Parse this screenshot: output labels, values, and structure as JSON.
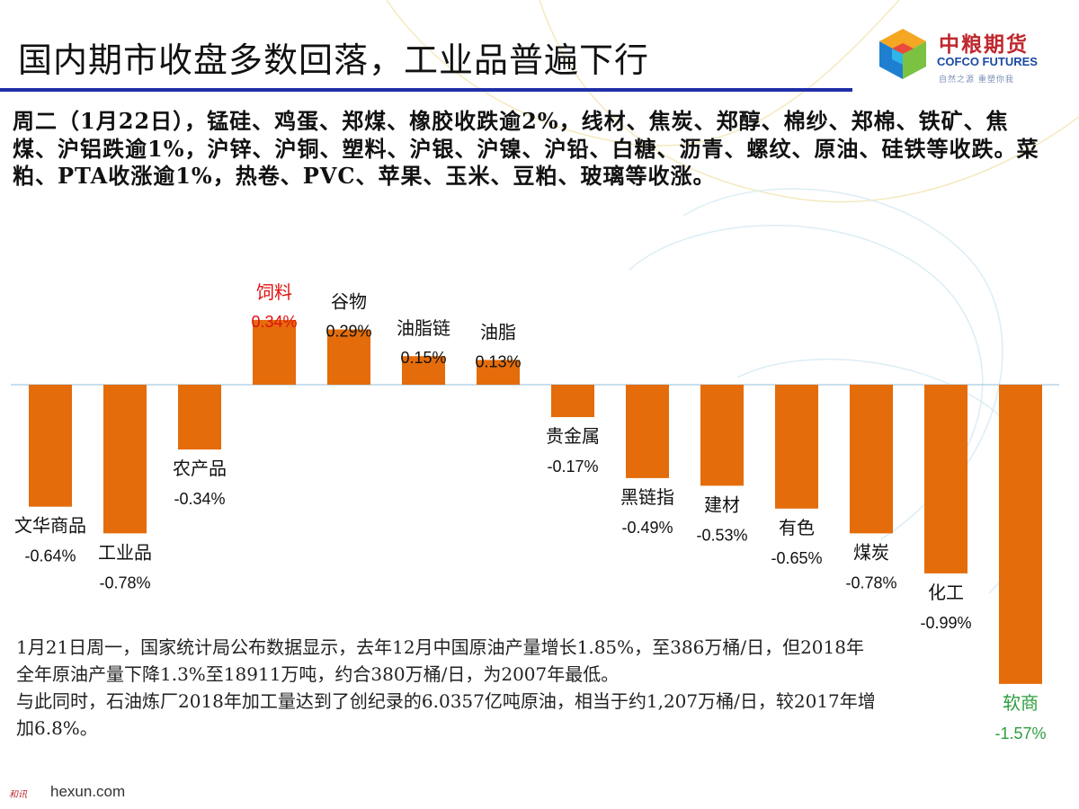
{
  "slide": {
    "title": "国内期市收盘多数回落，工业品普遍下行",
    "summary": "周二（1月22日），锰硅、鸡蛋、郑煤、橡胶收跌逾2%，线材、焦炭、郑醇、棉纱、郑棉、铁矿、焦煤、沪铝跌逾1%，沪锌、沪铜、塑料、沪银、沪镍、沪铅、白糖、沥青、螺纹、原油、硅铁等收跌。菜粕、PTA收涨逾1%，热卷、PVC、苹果、玉米、豆粕、玻璃等收涨。",
    "note_lines": [
      "1月21日周一，国家统计局公布数据显示，去年12月中国原油产量增长1.85%，至386万桶/日，但2018年全年原油产量下降1.3%至18911万吨，约合380万桶/日，为2007年最低。",
      "与此同时，石油炼厂2018年加工量达到了创纪录的6.0357亿吨原油，相当于约1,207万桶/日，较2017年增加6.8%。"
    ]
  },
  "logo": {
    "name_cn": "中粮期货",
    "name_en": "COFCO FUTURES",
    "slogan": "自然之源 重塑你我"
  },
  "watermark": {
    "cn": "和讯",
    "en": "hexun.com"
  },
  "colors": {
    "bar": "#e46c0a",
    "title_rule": "#1f2fa8",
    "label_default": "#111111",
    "label_highlight_red": "#e01010",
    "label_highlight_green": "#2e9e3e"
  },
  "chart_data": {
    "type": "bar",
    "unit": "%",
    "categories": [
      "文华商品",
      "工业品",
      "农产品",
      "饲料",
      "谷物",
      "油脂链",
      "油脂",
      "贵金属",
      "黑链指",
      "建材",
      "有色",
      "煤炭",
      "化工",
      "软商"
    ],
    "values": [
      -0.64,
      -0.78,
      -0.34,
      0.34,
      0.29,
      0.15,
      0.13,
      -0.17,
      -0.49,
      -0.53,
      -0.65,
      -0.78,
      -0.99,
      -1.57
    ],
    "value_labels": [
      "-0.64%",
      "-0.78%",
      "-0.34%",
      "0.34%",
      "0.29%",
      "0.15%",
      "0.13%",
      "-0.17%",
      "-0.49%",
      "-0.53%",
      "-0.65%",
      "-0.78%",
      "-0.99%",
      "-1.57%"
    ],
    "highlight": {
      "饲料": "red",
      "软商": "green"
    },
    "ylim": [
      -1.6,
      0.4
    ],
    "grid": false,
    "legend": "none",
    "bar_color": "#e46c0a"
  }
}
